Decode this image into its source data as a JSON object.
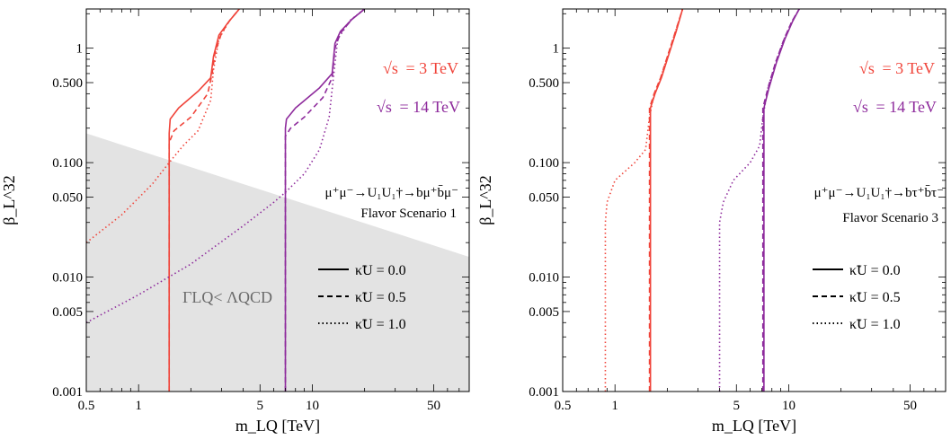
{
  "colors": {
    "red": "#f0443a",
    "purple": "#8e2b9c",
    "shade": "#e3e3e3",
    "shade_label": "#6a6a6a"
  },
  "chart_data": [
    {
      "type": "line",
      "panel": "left",
      "xlabel": "m_LQ [TeV]",
      "ylabel": "β_L^32",
      "xscale": "log",
      "yscale": "log",
      "xlim": [
        0.5,
        80
      ],
      "ylim": [
        0.001,
        2.2
      ],
      "x_ticks": [
        0.5,
        1,
        5,
        10,
        50
      ],
      "x_tick_labels": [
        "0.5",
        "1",
        "5",
        "10",
        "50"
      ],
      "y_ticks": [
        0.001,
        0.005,
        0.01,
        0.05,
        0.1,
        0.5,
        1
      ],
      "y_tick_labels": [
        "0.001",
        "0.005",
        "0.010",
        "0.050",
        "0.100",
        "0.500",
        "1"
      ],
      "energy_labels": [
        {
          "sqrt": "√s",
          "text": "= 3 TeV",
          "color_key": "red"
        },
        {
          "sqrt": "√s",
          "text": "= 14 TeV",
          "color_key": "purple"
        }
      ],
      "process": "μ⁺μ⁻→U₁U₁†→bμ⁺b̄μ⁻",
      "scenario": "Flavor Scenario 1",
      "legend": [
        {
          "style": "solid",
          "label": "κ̃U = 0.0"
        },
        {
          "style": "dashed",
          "label": "κ̃U = 0.5"
        },
        {
          "style": "dotted",
          "label": "κ̃U = 1.0"
        }
      ],
      "shaded_region": {
        "label": "ΓLQ< ΛQCD",
        "boundary": [
          {
            "x": 0.5,
            "y": 0.18
          },
          {
            "x": 80,
            "y": 0.015
          }
        ]
      },
      "series": [
        {
          "name": "√s = 3 TeV, κ̃U = 0.0",
          "color_key": "red",
          "style": "solid",
          "points": [
            [
              1.5,
              0.001
            ],
            [
              1.5,
              0.1
            ],
            [
              1.5,
              0.18
            ],
            [
              1.52,
              0.24
            ],
            [
              1.7,
              0.3
            ],
            [
              2.2,
              0.42
            ],
            [
              2.6,
              0.55
            ],
            [
              2.7,
              0.85
            ],
            [
              2.9,
              1.3
            ],
            [
              3.3,
              1.7
            ],
            [
              3.8,
              2.2
            ]
          ]
        },
        {
          "name": "√s = 3 TeV, κ̃U = 0.5",
          "color_key": "red",
          "style": "dashed",
          "points": [
            [
              1.5,
              0.001
            ],
            [
              1.5,
              0.1
            ],
            [
              1.5,
              0.15
            ],
            [
              1.6,
              0.19
            ],
            [
              2.0,
              0.25
            ],
            [
              2.5,
              0.4
            ],
            [
              2.65,
              0.6
            ],
            [
              2.75,
              0.9
            ],
            [
              3.0,
              1.35
            ],
            [
              3.35,
              1.75
            ],
            [
              3.8,
              2.2
            ]
          ]
        },
        {
          "name": "√s = 3 TeV, κ̃U = 1.0",
          "color_key": "red",
          "style": "dotted",
          "points": [
            [
              0.5,
              0.02
            ],
            [
              0.8,
              0.035
            ],
            [
              1.2,
              0.065
            ],
            [
              1.5,
              0.1
            ],
            [
              1.8,
              0.14
            ],
            [
              2.2,
              0.19
            ],
            [
              2.6,
              0.35
            ],
            [
              2.7,
              0.65
            ],
            [
              2.9,
              1.2
            ],
            [
              3.3,
              1.7
            ],
            [
              3.8,
              2.2
            ]
          ]
        },
        {
          "name": "√s = 14 TeV, κ̃U = 0.0",
          "color_key": "purple",
          "style": "solid",
          "points": [
            [
              7.0,
              0.001
            ],
            [
              7.0,
              0.1
            ],
            [
              7.0,
              0.2
            ],
            [
              7.1,
              0.24
            ],
            [
              8.0,
              0.3
            ],
            [
              11.0,
              0.45
            ],
            [
              13.0,
              0.6
            ],
            [
              13.5,
              1.1
            ],
            [
              14.5,
              1.4
            ],
            [
              17.0,
              1.8
            ],
            [
              20.0,
              2.2
            ]
          ]
        },
        {
          "name": "√s = 14 TeV, κ̃U = 0.5",
          "color_key": "purple",
          "style": "dashed",
          "points": [
            [
              7.0,
              0.001
            ],
            [
              7.0,
              0.1
            ],
            [
              7.0,
              0.17
            ],
            [
              7.5,
              0.2
            ],
            [
              9.0,
              0.25
            ],
            [
              11.5,
              0.37
            ],
            [
              13.0,
              0.55
            ],
            [
              13.5,
              1.0
            ],
            [
              14.5,
              1.35
            ],
            [
              17.0,
              1.8
            ],
            [
              20.0,
              2.2
            ]
          ]
        },
        {
          "name": "√s = 14 TeV, κ̃U = 1.0",
          "color_key": "purple",
          "style": "dotted",
          "points": [
            [
              0.5,
              0.004
            ],
            [
              1.0,
              0.007
            ],
            [
              2.0,
              0.013
            ],
            [
              4.0,
              0.028
            ],
            [
              6.0,
              0.045
            ],
            [
              7.0,
              0.055
            ],
            [
              9.0,
              0.08
            ],
            [
              11.0,
              0.13
            ],
            [
              12.5,
              0.25
            ],
            [
              13.3,
              0.6
            ],
            [
              14.0,
              1.2
            ],
            [
              16.5,
              1.75
            ],
            [
              20.0,
              2.2
            ]
          ]
        }
      ]
    },
    {
      "type": "line",
      "panel": "right",
      "xlabel": "m_LQ [TeV]",
      "ylabel": "β_L^32",
      "xscale": "log",
      "yscale": "log",
      "xlim": [
        0.5,
        80
      ],
      "ylim": [
        0.001,
        2.2
      ],
      "x_ticks": [
        0.5,
        1,
        5,
        10,
        50
      ],
      "x_tick_labels": [
        "0.5",
        "1",
        "5",
        "10",
        "50"
      ],
      "y_ticks": [
        0.001,
        0.005,
        0.01,
        0.05,
        0.1,
        0.5,
        1
      ],
      "y_tick_labels": [
        "0.001",
        "0.005",
        "0.010",
        "0.050",
        "0.100",
        "0.500",
        "1"
      ],
      "energy_labels": [
        {
          "sqrt": "√s",
          "text": "= 3 TeV",
          "color_key": "red"
        },
        {
          "sqrt": "√s",
          "text": "= 14 TeV",
          "color_key": "purple"
        }
      ],
      "process": "μ⁺μ⁻→U₁U₁†→bτ⁺b̄τ⁻",
      "scenario": "Flavor Scenario 3",
      "legend": [
        {
          "style": "solid",
          "label": "κ̃U = 0.0"
        },
        {
          "style": "dashed",
          "label": "κ̃U = 0.5"
        },
        {
          "style": "dotted",
          "label": "κ̃U = 1.0"
        }
      ],
      "series": [
        {
          "name": "√s = 3 TeV, κ̃U = 0.0",
          "color_key": "red",
          "style": "solid",
          "points": [
            [
              1.6,
              0.001
            ],
            [
              1.6,
              0.1
            ],
            [
              1.6,
              0.3
            ],
            [
              1.7,
              0.4
            ],
            [
              1.85,
              0.55
            ],
            [
              2.05,
              0.9
            ],
            [
              2.25,
              1.4
            ],
            [
              2.45,
              2.2
            ]
          ]
        },
        {
          "name": "√s = 3 TeV, κ̃U = 0.5",
          "color_key": "red",
          "style": "dashed",
          "points": [
            [
              1.58,
              0.001
            ],
            [
              1.58,
              0.1
            ],
            [
              1.58,
              0.3
            ],
            [
              1.68,
              0.4
            ],
            [
              1.83,
              0.55
            ],
            [
              2.03,
              0.9
            ],
            [
              2.23,
              1.4
            ],
            [
              2.45,
              2.2
            ]
          ]
        },
        {
          "name": "√s = 3 TeV, κ̃U = 1.0",
          "color_key": "red",
          "style": "dotted",
          "points": [
            [
              0.88,
              0.001
            ],
            [
              0.88,
              0.03
            ],
            [
              0.9,
              0.045
            ],
            [
              1.0,
              0.07
            ],
            [
              1.3,
              0.1
            ],
            [
              1.5,
              0.13
            ],
            [
              1.58,
              0.25
            ],
            [
              1.68,
              0.4
            ],
            [
              1.83,
              0.55
            ],
            [
              2.03,
              0.9
            ],
            [
              2.23,
              1.4
            ],
            [
              2.45,
              2.2
            ]
          ]
        },
        {
          "name": "√s = 14 TeV, κ̃U = 0.0",
          "color_key": "purple",
          "style": "solid",
          "points": [
            [
              7.2,
              0.001
            ],
            [
              7.2,
              0.1
            ],
            [
              7.2,
              0.3
            ],
            [
              7.7,
              0.45
            ],
            [
              8.5,
              0.75
            ],
            [
              9.5,
              1.2
            ],
            [
              10.5,
              1.7
            ],
            [
              11.5,
              2.2
            ]
          ]
        },
        {
          "name": "√s = 14 TeV, κ̃U = 0.5",
          "color_key": "purple",
          "style": "dashed",
          "points": [
            [
              7.1,
              0.001
            ],
            [
              7.1,
              0.1
            ],
            [
              7.1,
              0.3
            ],
            [
              7.6,
              0.45
            ],
            [
              8.4,
              0.75
            ],
            [
              9.4,
              1.2
            ],
            [
              10.4,
              1.7
            ],
            [
              11.5,
              2.2
            ]
          ]
        },
        {
          "name": "√s = 14 TeV, κ̃U = 1.0",
          "color_key": "purple",
          "style": "dotted",
          "points": [
            [
              4.0,
              0.001
            ],
            [
              4.0,
              0.03
            ],
            [
              4.2,
              0.045
            ],
            [
              4.8,
              0.07
            ],
            [
              6.0,
              0.1
            ],
            [
              6.8,
              0.14
            ],
            [
              7.1,
              0.25
            ],
            [
              7.6,
              0.45
            ],
            [
              8.4,
              0.75
            ],
            [
              9.4,
              1.2
            ],
            [
              10.4,
              1.7
            ],
            [
              11.5,
              2.2
            ]
          ]
        }
      ]
    }
  ]
}
